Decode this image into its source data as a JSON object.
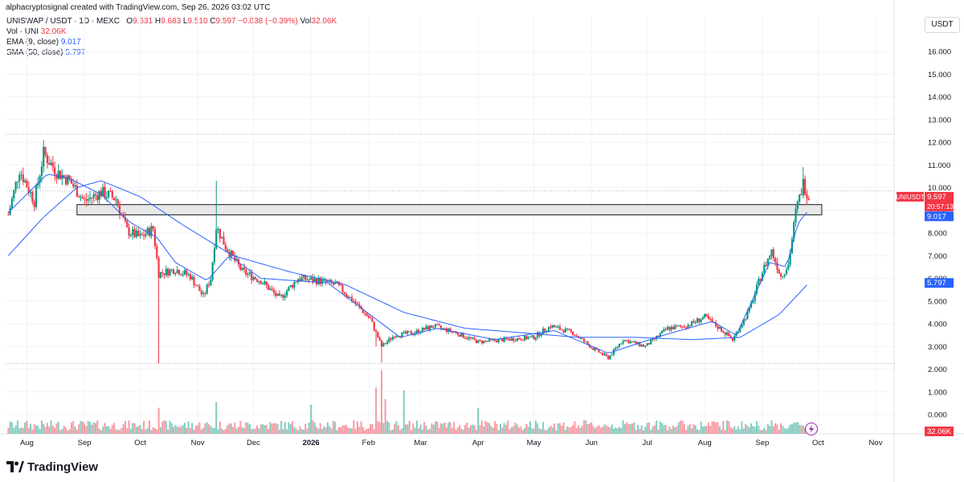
{
  "header": {
    "credit": "alphacryptosignal created with TradingView.com, Sep 26, 2026 03:02 UTC",
    "symbol": "UNISWAP / USDT · 1D · MEXC",
    "o": "9.631",
    "h": "9.683",
    "l": "9.510",
    "c": "9.597",
    "change": "−0.038 (−0.39%)",
    "vol_label": "Vol",
    "vol_value": "32.06K",
    "vol_series_label": "Vol · UNI",
    "vol_series_value": "32.06K",
    "ema_label": "EMA (9, close)",
    "ema_value": "9.017",
    "sma_label": "SMA (50, close)",
    "sma_value": "5.797",
    "currency": "USDT"
  },
  "brand": {
    "text": "TradingView"
  },
  "colors": {
    "up": "#089981",
    "down": "#f23645",
    "ema": "#2962ff",
    "sma": "#2962ff",
    "zone_fill": "#e8e8e8",
    "grid": "#f0f3fa"
  },
  "chart_data": {
    "type": "candlestick",
    "ylim": [
      0,
      16.5
    ],
    "y_ticks": [
      "16.000",
      "15.000",
      "14.000",
      "13.000",
      "12.000",
      "11.000",
      "10.000",
      "9.000",
      "8.000",
      "7.000",
      "6.000",
      "5.000",
      "4.000",
      "3.000",
      "2.000",
      "1.000",
      "0.000"
    ],
    "x_ticks": [
      "Aug",
      "Sep",
      "Oct",
      "Nov",
      "Dec",
      "2026",
      "Feb",
      "Mar",
      "Apr",
      "May",
      "Jun",
      "Jul",
      "Aug",
      "Sep",
      "Oct",
      "Nov"
    ],
    "resistance_zone": [
      8.8,
      9.25
    ],
    "dotted_levels": [
      12.35,
      9.85,
      2.25
    ],
    "price_label": {
      "symbol": "UNIUSDT",
      "price": "9.597",
      "countdown": "20:57:13"
    },
    "ema_label": "9.017",
    "sma_label": "5.797",
    "volume_label": "32.06K",
    "price_anchors": [
      [
        "2025-07-22",
        8.8
      ],
      [
        "2025-07-28",
        10.8
      ],
      [
        "2025-08-05",
        9.4
      ],
      [
        "2025-08-10",
        11.5
      ],
      [
        "2025-08-17",
        10.7
      ],
      [
        "2025-08-24",
        10.3
      ],
      [
        "2025-09-01",
        9.4
      ],
      [
        "2025-09-10",
        9.8
      ],
      [
        "2025-09-18",
        9.5
      ],
      [
        "2025-09-24",
        8.1
      ],
      [
        "2025-10-01",
        7.8
      ],
      [
        "2025-10-08",
        8.2
      ],
      [
        "2025-10-11",
        6.2
      ],
      [
        "2025-10-20",
        6.4
      ],
      [
        "2025-10-28",
        6.1
      ],
      [
        "2025-11-04",
        5.2
      ],
      [
        "2025-11-08",
        6.0
      ],
      [
        "2025-11-11",
        8.3
      ],
      [
        "2025-11-16",
        7.4
      ],
      [
        "2025-11-25",
        6.3
      ],
      [
        "2025-12-05",
        5.9
      ],
      [
        "2025-12-15",
        5.1
      ],
      [
        "2025-12-25",
        6.0
      ],
      [
        "2026-01-05",
        5.9
      ],
      [
        "2026-01-15",
        5.7
      ],
      [
        "2026-01-25",
        4.9
      ],
      [
        "2026-02-02",
        4.2
      ],
      [
        "2026-02-08",
        3.0
      ],
      [
        "2026-02-15",
        3.5
      ],
      [
        "2026-02-25",
        3.6
      ],
      [
        "2026-03-08",
        3.9
      ],
      [
        "2026-03-20",
        3.6
      ],
      [
        "2026-04-01",
        3.2
      ],
      [
        "2026-04-15",
        3.3
      ],
      [
        "2026-05-01",
        3.4
      ],
      [
        "2026-05-10",
        3.9
      ],
      [
        "2026-05-22",
        3.6
      ],
      [
        "2026-06-02",
        2.9
      ],
      [
        "2026-06-10",
        2.5
      ],
      [
        "2026-06-18",
        3.3
      ],
      [
        "2026-06-30",
        3.0
      ],
      [
        "2026-07-12",
        3.8
      ],
      [
        "2026-07-22",
        3.9
      ],
      [
        "2026-08-01",
        4.3
      ],
      [
        "2026-08-12",
        3.6
      ],
      [
        "2026-08-16",
        3.3
      ],
      [
        "2026-08-25",
        4.6
      ],
      [
        "2026-09-01",
        6.3
      ],
      [
        "2026-09-06",
        7.2
      ],
      [
        "2026-09-11",
        6.1
      ],
      [
        "2026-09-15",
        6.6
      ],
      [
        "2026-09-19",
        8.9
      ],
      [
        "2026-09-23",
        10.2
      ],
      [
        "2026-09-26",
        9.6
      ]
    ],
    "ema_9_anchors": [
      [
        "2025-07-22",
        8.9
      ],
      [
        "2025-08-12",
        10.6
      ],
      [
        "2025-08-24",
        10.4
      ],
      [
        "2025-09-10",
        9.7
      ],
      [
        "2025-09-25",
        8.5
      ],
      [
        "2025-10-10",
        7.8
      ],
      [
        "2025-10-20",
        6.7
      ],
      [
        "2025-11-06",
        5.9
      ],
      [
        "2025-11-18",
        7.0
      ],
      [
        "2025-12-05",
        6.0
      ],
      [
        "2026-01-10",
        5.8
      ],
      [
        "2026-02-05",
        4.2
      ],
      [
        "2026-02-18",
        3.4
      ],
      [
        "2026-03-10",
        3.8
      ],
      [
        "2026-04-10",
        3.3
      ],
      [
        "2026-05-12",
        3.7
      ],
      [
        "2026-06-10",
        2.7
      ],
      [
        "2026-07-10",
        3.5
      ],
      [
        "2026-08-05",
        4.1
      ],
      [
        "2026-08-18",
        3.5
      ],
      [
        "2026-09-05",
        6.7
      ],
      [
        "2026-09-14",
        6.5
      ],
      [
        "2026-09-20",
        8.4
      ],
      [
        "2026-09-26",
        9.017
      ]
    ],
    "sma_50_anchors": [
      [
        "2025-07-22",
        7.0
      ],
      [
        "2025-08-10",
        8.7
      ],
      [
        "2025-08-28",
        10.0
      ],
      [
        "2025-09-10",
        10.3
      ],
      [
        "2025-10-01",
        9.6
      ],
      [
        "2025-10-25",
        8.3
      ],
      [
        "2025-11-20",
        7.0
      ],
      [
        "2025-12-20",
        6.3
      ],
      [
        "2026-01-20",
        5.7
      ],
      [
        "2026-02-20",
        4.5
      ],
      [
        "2026-03-25",
        3.8
      ],
      [
        "2026-04-25",
        3.6
      ],
      [
        "2026-05-25",
        3.4
      ],
      [
        "2026-06-25",
        3.4
      ],
      [
        "2026-07-25",
        3.3
      ],
      [
        "2026-08-20",
        3.4
      ],
      [
        "2026-09-10",
        4.4
      ],
      [
        "2026-09-26",
        5.797
      ]
    ],
    "volume_spikes": [
      [
        "2025-10-11",
        0.9
      ],
      [
        "2025-11-11",
        1.1
      ],
      [
        "2026-02-05",
        1.6
      ],
      [
        "2026-02-08",
        2.2
      ],
      [
        "2026-02-10",
        1.2
      ],
      [
        "2026-02-20",
        1.5
      ],
      [
        "2026-01-01",
        1.0
      ],
      [
        "2026-04-01",
        0.9
      ]
    ]
  }
}
